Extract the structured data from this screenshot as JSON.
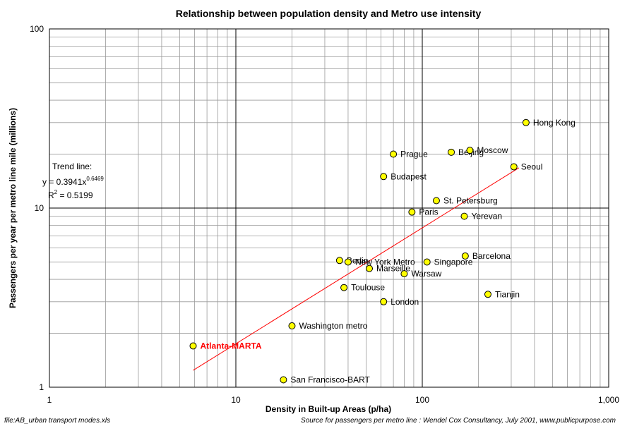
{
  "chart_data": {
    "type": "scatter",
    "title": "Relationship between population density and Metro use intensity",
    "xlabel": "Density in Built-up Areas (p/ha)",
    "ylabel": "Passengers per year per metro line mile (millions)",
    "x_scale": "log",
    "y_scale": "log",
    "xlim": [
      1,
      1000
    ],
    "ylim": [
      1,
      100
    ],
    "x_ticks": [
      {
        "value": 1,
        "label": "1"
      },
      {
        "value": 10,
        "label": "10"
      },
      {
        "value": 100,
        "label": "100"
      },
      {
        "value": 1000,
        "label": "1,000"
      }
    ],
    "y_ticks": [
      {
        "value": 1,
        "label": "1"
      },
      {
        "value": 10,
        "label": "10"
      },
      {
        "value": 100,
        "label": "100"
      }
    ],
    "grid": true,
    "points": [
      {
        "label": "Hong Kong",
        "x": 360,
        "y": 30,
        "highlight": false
      },
      {
        "label": "Beijing",
        "x": 143,
        "y": 20.5,
        "highlight": false
      },
      {
        "label": "Moscow",
        "x": 180,
        "y": 21,
        "highlight": false
      },
      {
        "label": "Prague",
        "x": 70,
        "y": 20,
        "highlight": false
      },
      {
        "label": "Seoul",
        "x": 310,
        "y": 17,
        "highlight": false
      },
      {
        "label": "Budapest",
        "x": 62,
        "y": 15,
        "highlight": false
      },
      {
        "label": "St. Petersburg",
        "x": 119,
        "y": 11,
        "highlight": false
      },
      {
        "label": "Paris",
        "x": 88,
        "y": 9.5,
        "highlight": false
      },
      {
        "label": "Yerevan",
        "x": 168,
        "y": 9,
        "highlight": false
      },
      {
        "label": "Berlin",
        "x": 36,
        "y": 5.1,
        "highlight": false
      },
      {
        "label": "New York Metro",
        "x": 40,
        "y": 5,
        "highlight": false
      },
      {
        "label": "Barcelona",
        "x": 170,
        "y": 5.4,
        "highlight": false
      },
      {
        "label": "Singapore",
        "x": 106,
        "y": 5,
        "highlight": false
      },
      {
        "label": "Marseille",
        "x": 52,
        "y": 4.6,
        "highlight": false
      },
      {
        "label": "Warsaw",
        "x": 80,
        "y": 4.3,
        "highlight": false
      },
      {
        "label": "Toulouse",
        "x": 38,
        "y": 3.6,
        "highlight": false
      },
      {
        "label": "Tianjin",
        "x": 225,
        "y": 3.3,
        "highlight": false
      },
      {
        "label": "London",
        "x": 62,
        "y": 3,
        "highlight": false
      },
      {
        "label": "Washington metro",
        "x": 20,
        "y": 2.2,
        "highlight": false
      },
      {
        "label": "Atlanta-MARTA",
        "x": 5.9,
        "y": 1.7,
        "highlight": true
      },
      {
        "label": "San Francisco-BART",
        "x": 18,
        "y": 1.1,
        "highlight": false
      }
    ],
    "trendline": {
      "a": 0.3941,
      "b": 0.6469,
      "x_range": [
        5.9,
        330
      ],
      "color": "#ff0000",
      "label_title": "Trend line:",
      "label_eq_base": "y = 0.3941x",
      "label_eq_exp": "0.6469",
      "label_r2_base": "R",
      "label_r2_sup": "2",
      "label_r2_value": " = 0.5199"
    },
    "marker_color": "#ffff00",
    "highlight_color": "#ff0000"
  },
  "footer": {
    "file_note": "file:AB_urban transport modes.xls",
    "source_note": "Source for passengers per metro line : Wendel Cox Consultancy, July 2001, www.publicpurpose.com"
  }
}
